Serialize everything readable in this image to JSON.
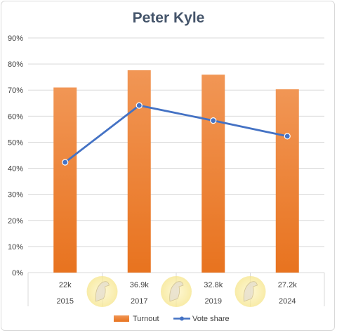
{
  "chart_data": {
    "type": "bar",
    "title": "Peter Kyle",
    "categories": [
      "2015",
      "2017",
      "2019",
      "2024"
    ],
    "category_sublabels": [
      "22k",
      "36.9k",
      "32.8k",
      "27.2k"
    ],
    "ylim": [
      0,
      90
    ],
    "yticks": [
      "0%",
      "10%",
      "20%",
      "30%",
      "40%",
      "50%",
      "60%",
      "70%",
      "80%",
      "90%"
    ],
    "grid": true,
    "legend_position": "bottom",
    "series": [
      {
        "name": "Turnout",
        "type": "bar",
        "values": [
          71,
          77.6,
          75.9,
          70.3
        ],
        "color": "#ed7d31"
      },
      {
        "name": "Vote share",
        "type": "line",
        "values": [
          42.3,
          64.1,
          58.3,
          52.3
        ],
        "color": "#4472c4"
      }
    ]
  }
}
